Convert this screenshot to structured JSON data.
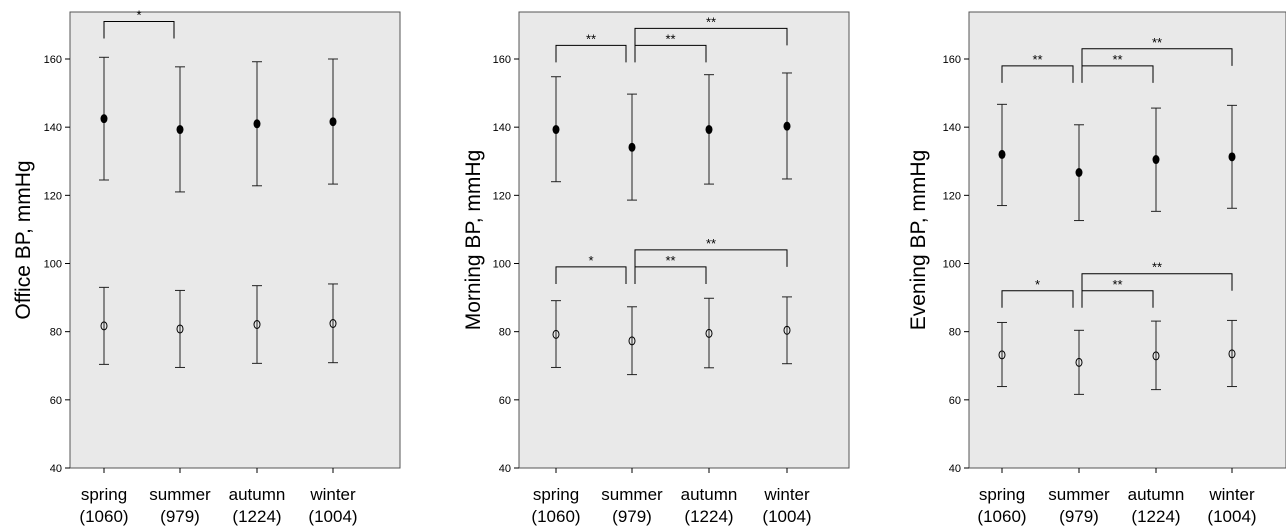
{
  "chart_data": [
    {
      "type": "errorbar",
      "ylabel": "Office BP, mmHg",
      "categories": [
        "spring",
        "summer",
        "autumn",
        "winter"
      ],
      "category_counts": [
        "(1060)",
        "(979)",
        "(1224)",
        "(1004)"
      ],
      "ylim": [
        40,
        172
      ],
      "yticks": [
        40,
        60,
        80,
        100,
        120,
        140,
        160
      ],
      "grid": false,
      "series": [
        {
          "marker": "filled",
          "mean": [
            142.5,
            139.3,
            141.0,
            141.6
          ],
          "lower": [
            124.5,
            121.0,
            122.8,
            123.3
          ],
          "upper": [
            160.5,
            157.7,
            159.2,
            160.0
          ]
        },
        {
          "marker": "open",
          "mean": [
            81.7,
            80.8,
            82.1,
            82.4
          ],
          "lower": [
            70.4,
            69.5,
            70.7,
            70.9
          ],
          "upper": [
            93.0,
            92.1,
            93.5,
            94.0
          ]
        }
      ],
      "annotations": [
        {
          "from": 0,
          "to": 1,
          "label": "*",
          "level": 171,
          "drop": 166
        }
      ]
    },
    {
      "type": "errorbar",
      "ylabel": "Morning BP, mmHg",
      "categories": [
        "spring",
        "summer",
        "autumn",
        "winter"
      ],
      "category_counts": [
        "(1060)",
        "(979)",
        "(1224)",
        "(1004)"
      ],
      "ylim": [
        40,
        172
      ],
      "yticks": [
        40,
        60,
        80,
        100,
        120,
        140,
        160
      ],
      "grid": false,
      "series": [
        {
          "marker": "filled",
          "mean": [
            139.3,
            134.1,
            139.3,
            140.3
          ],
          "lower": [
            124.0,
            118.6,
            123.3,
            124.8
          ],
          "upper": [
            154.8,
            149.7,
            155.4,
            155.9
          ]
        },
        {
          "marker": "open",
          "mean": [
            79.2,
            77.3,
            79.5,
            80.4
          ],
          "lower": [
            69.5,
            67.4,
            69.4,
            70.6
          ],
          "upper": [
            89.1,
            87.3,
            89.8,
            90.2
          ]
        }
      ],
      "annotations": [
        {
          "from": 0,
          "to": 1,
          "label": "**",
          "level": 164,
          "drop": 159
        },
        {
          "from": 1,
          "to": 2,
          "label": "**",
          "level": 164,
          "drop": 159
        },
        {
          "from": 1,
          "to": 3,
          "label": "**",
          "level": 169,
          "drop": 164
        },
        {
          "from": 0,
          "to": 1,
          "label": "*",
          "level": 99,
          "drop": 94
        },
        {
          "from": 1,
          "to": 2,
          "label": "**",
          "level": 99,
          "drop": 94
        },
        {
          "from": 1,
          "to": 3,
          "label": "**",
          "level": 104,
          "drop": 99
        }
      ]
    },
    {
      "type": "errorbar",
      "ylabel": "Evening BP, mmHg",
      "categories": [
        "spring",
        "summer",
        "autumn",
        "winter"
      ],
      "category_counts": [
        "(1060)",
        "(979)",
        "(1224)",
        "(1004)"
      ],
      "ylim": [
        40,
        172
      ],
      "yticks": [
        40,
        60,
        80,
        100,
        120,
        140,
        160
      ],
      "grid": false,
      "series": [
        {
          "marker": "filled",
          "mean": [
            132.0,
            126.7,
            130.5,
            131.3
          ],
          "lower": [
            117.0,
            112.6,
            115.3,
            116.2
          ],
          "upper": [
            146.7,
            140.7,
            145.6,
            146.4
          ]
        },
        {
          "marker": "open",
          "mean": [
            73.2,
            71.0,
            72.9,
            73.5
          ],
          "lower": [
            63.9,
            61.6,
            63.0,
            63.9
          ],
          "upper": [
            82.7,
            80.4,
            83.1,
            83.3
          ]
        }
      ],
      "annotations": [
        {
          "from": 0,
          "to": 1,
          "label": "**",
          "level": 158,
          "drop": 153
        },
        {
          "from": 1,
          "to": 2,
          "label": "**",
          "level": 158,
          "drop": 153
        },
        {
          "from": 1,
          "to": 3,
          "label": "**",
          "level": 163,
          "drop": 158
        },
        {
          "from": 0,
          "to": 1,
          "label": "*",
          "level": 92,
          "drop": 87
        },
        {
          "from": 1,
          "to": 2,
          "label": "**",
          "level": 92,
          "drop": 87
        },
        {
          "from": 1,
          "to": 3,
          "label": "**",
          "level": 97,
          "drop": 92
        }
      ]
    }
  ]
}
